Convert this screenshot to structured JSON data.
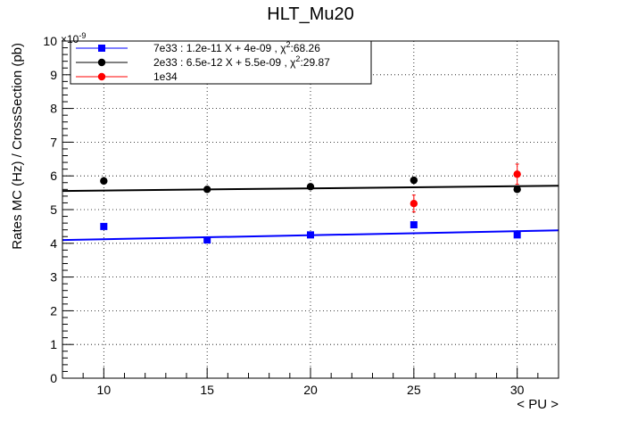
{
  "chart_data": {
    "type": "scatter",
    "title": "HLT_Mu20",
    "xlabel": "< PU >",
    "ylabel": "Rates MC (Hz) / CrossSection (pb)",
    "y_exponent_label": "×10",
    "y_exponent_power": "-9",
    "xlim": [
      8,
      32
    ],
    "ylim": [
      0,
      10
    ],
    "x_ticks": [
      "10",
      "15",
      "20",
      "25",
      "30"
    ],
    "y_ticks": [
      "0",
      "1",
      "2",
      "3",
      "4",
      "5",
      "6",
      "7",
      "8",
      "9",
      "10"
    ],
    "grid": true,
    "legend_position": "top-left",
    "series": [
      {
        "name": "7e33 : 1.2e-11 X + 4e-09 , χ²:68.26",
        "legend_prefix": "7e33 : 1.2e-11 X + 4e-09 , χ",
        "legend_sup": "2",
        "legend_suffix": ":68.26",
        "color": "#0000ff",
        "marker": "square",
        "x": [
          10,
          15,
          20,
          25,
          30
        ],
        "y": [
          4.5,
          4.1,
          4.25,
          4.55,
          4.25
        ],
        "fit": {
          "slope": 0.012,
          "intercept": 4.0
        }
      },
      {
        "name": "2e33 : 6.5e-12 X + 5.5e-09 , χ²:29.87",
        "legend_prefix": "2e33 : 6.5e-12 X + 5.5e-09 , χ",
        "legend_sup": "2",
        "legend_suffix": ":29.87",
        "color": "#000000",
        "marker": "circle",
        "x": [
          10,
          15,
          20,
          25,
          30
        ],
        "y": [
          5.85,
          5.6,
          5.68,
          5.87,
          5.6
        ],
        "fit": {
          "slope": 0.0065,
          "intercept": 5.5
        }
      },
      {
        "name": "1e34",
        "legend_prefix": "1e34",
        "legend_sup": "",
        "legend_suffix": "",
        "color": "#ff0000",
        "marker": "circle",
        "x": [
          25,
          30
        ],
        "y": [
          5.18,
          6.05
        ],
        "yerr": [
          0.25,
          0.3
        ]
      }
    ]
  }
}
